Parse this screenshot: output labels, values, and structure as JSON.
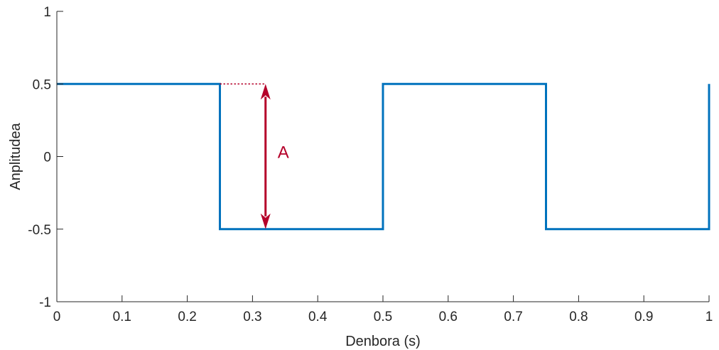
{
  "chart_data": {
    "type": "line",
    "title": "",
    "xlabel": "Denbora (s)",
    "ylabel": "Anplitudea",
    "xlim": [
      0,
      1
    ],
    "ylim": [
      -1,
      1
    ],
    "grid": false,
    "legend": "none",
    "x_ticks": [
      0,
      0.1,
      0.2,
      0.3,
      0.4,
      0.5,
      0.6,
      0.7,
      0.8,
      0.9,
      1
    ],
    "x_tick_labels": [
      "0",
      "0.1",
      "0.2",
      "0.3",
      "0.4",
      "0.5",
      "0.6",
      "0.7",
      "0.8",
      "0.9",
      "1"
    ],
    "y_ticks": [
      -1,
      -0.5,
      0,
      0.5,
      1
    ],
    "y_tick_labels": [
      "-1",
      "-0.5",
      "0",
      "0.5",
      "1"
    ],
    "series": [
      {
        "color": "#0072BD",
        "x": [
          0,
          0.25,
          0.25,
          0.5,
          0.5,
          0.75,
          0.75,
          1,
          1
        ],
        "y": [
          0.5,
          0.5,
          -0.5,
          -0.5,
          0.5,
          0.5,
          -0.5,
          -0.5,
          0.5
        ]
      }
    ],
    "annotations": [
      {
        "type": "double-arrow",
        "label": "A",
        "color": "#B5002A",
        "x": 0.32,
        "y_from": 0.5,
        "y_to": -0.5,
        "dotted_from_x": 0.25
      }
    ]
  }
}
